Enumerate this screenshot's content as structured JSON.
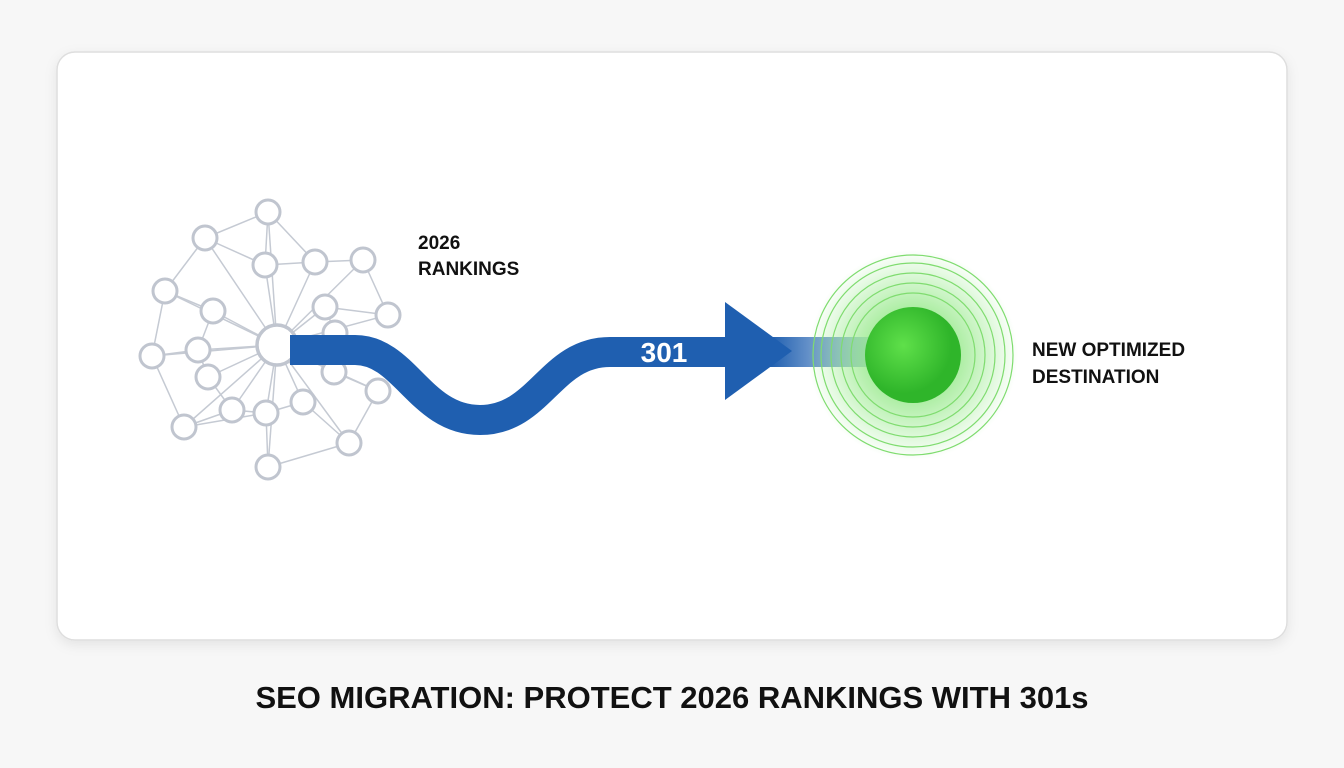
{
  "diagram": {
    "source_label": [
      "2026",
      "RANKINGS"
    ],
    "arrow_label": "301",
    "target_label": [
      "NEW OPTIMIZED",
      "DESTINATION"
    ]
  },
  "caption": "SEO MIGRATION: PROTECT 2026 RANKINGS WITH 301s"
}
